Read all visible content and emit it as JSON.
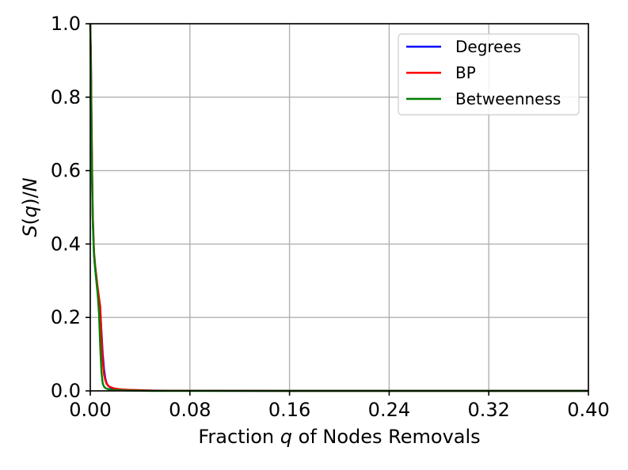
{
  "chart_data": {
    "type": "line",
    "title": "",
    "xlabel": {
      "pre": "Fraction ",
      "var": "q",
      "post": " of Nodes Removals"
    },
    "ylabel": {
      "s": "S",
      "open": "(",
      "var": "q",
      "close": ")/",
      "n": "N"
    },
    "xlim": [
      0.0,
      0.4
    ],
    "ylim": [
      0.0,
      1.0
    ],
    "xticks": [
      0.0,
      0.08,
      0.16,
      0.24,
      0.32,
      0.4
    ],
    "xtick_labels": [
      "0.00",
      "0.08",
      "0.16",
      "0.24",
      "0.32",
      "0.40"
    ],
    "yticks": [
      0.0,
      0.2,
      0.4,
      0.6,
      0.8,
      1.0
    ],
    "ytick_labels": [
      "0.0",
      "0.2",
      "0.4",
      "0.6",
      "0.8",
      "1.0"
    ],
    "grid": true,
    "legend_position": "top-right",
    "series": [
      {
        "name": "Degrees",
        "color": "#0000ff",
        "x": [
          0.0,
          0.0005,
          0.001,
          0.0015,
          0.002,
          0.003,
          0.004,
          0.006,
          0.008,
          0.009,
          0.01,
          0.011,
          0.012,
          0.013,
          0.014,
          0.016,
          0.02,
          0.025,
          0.03,
          0.04,
          0.05,
          0.08,
          0.16,
          0.24,
          0.32,
          0.4
        ],
        "y": [
          1.0,
          0.9,
          0.72,
          0.58,
          0.47,
          0.37,
          0.33,
          0.27,
          0.22,
          0.16,
          0.1,
          0.06,
          0.035,
          0.022,
          0.015,
          0.009,
          0.005,
          0.003,
          0.002,
          0.001,
          0.001,
          0.0005,
          0.0,
          0.0,
          0.0,
          0.0
        ]
      },
      {
        "name": "BP",
        "color": "#ff0000",
        "x": [
          0.0,
          0.0005,
          0.001,
          0.0015,
          0.002,
          0.003,
          0.004,
          0.006,
          0.008,
          0.009,
          0.01,
          0.011,
          0.012,
          0.013,
          0.015,
          0.018,
          0.02,
          0.025,
          0.03,
          0.04,
          0.05,
          0.08,
          0.16,
          0.24,
          0.32,
          0.4
        ],
        "y": [
          1.0,
          0.92,
          0.75,
          0.6,
          0.48,
          0.38,
          0.34,
          0.28,
          0.23,
          0.15,
          0.08,
          0.045,
          0.03,
          0.02,
          0.012,
          0.008,
          0.006,
          0.004,
          0.003,
          0.002,
          0.001,
          0.0005,
          0.0,
          0.0,
          0.0,
          0.0
        ]
      },
      {
        "name": "Betweenness",
        "color": "#008000",
        "x": [
          0.0,
          0.0005,
          0.001,
          0.0015,
          0.002,
          0.003,
          0.004,
          0.006,
          0.007,
          0.008,
          0.009,
          0.01,
          0.011,
          0.012,
          0.014,
          0.016,
          0.02,
          0.03,
          0.04,
          0.05,
          0.08,
          0.16,
          0.24,
          0.32,
          0.4
        ],
        "y": [
          1.0,
          0.88,
          0.7,
          0.56,
          0.46,
          0.37,
          0.33,
          0.26,
          0.21,
          0.12,
          0.05,
          0.02,
          0.012,
          0.008,
          0.005,
          0.003,
          0.002,
          0.001,
          0.0005,
          0.0,
          0.0,
          0.0,
          0.0,
          0.0,
          0.0
        ]
      }
    ]
  }
}
